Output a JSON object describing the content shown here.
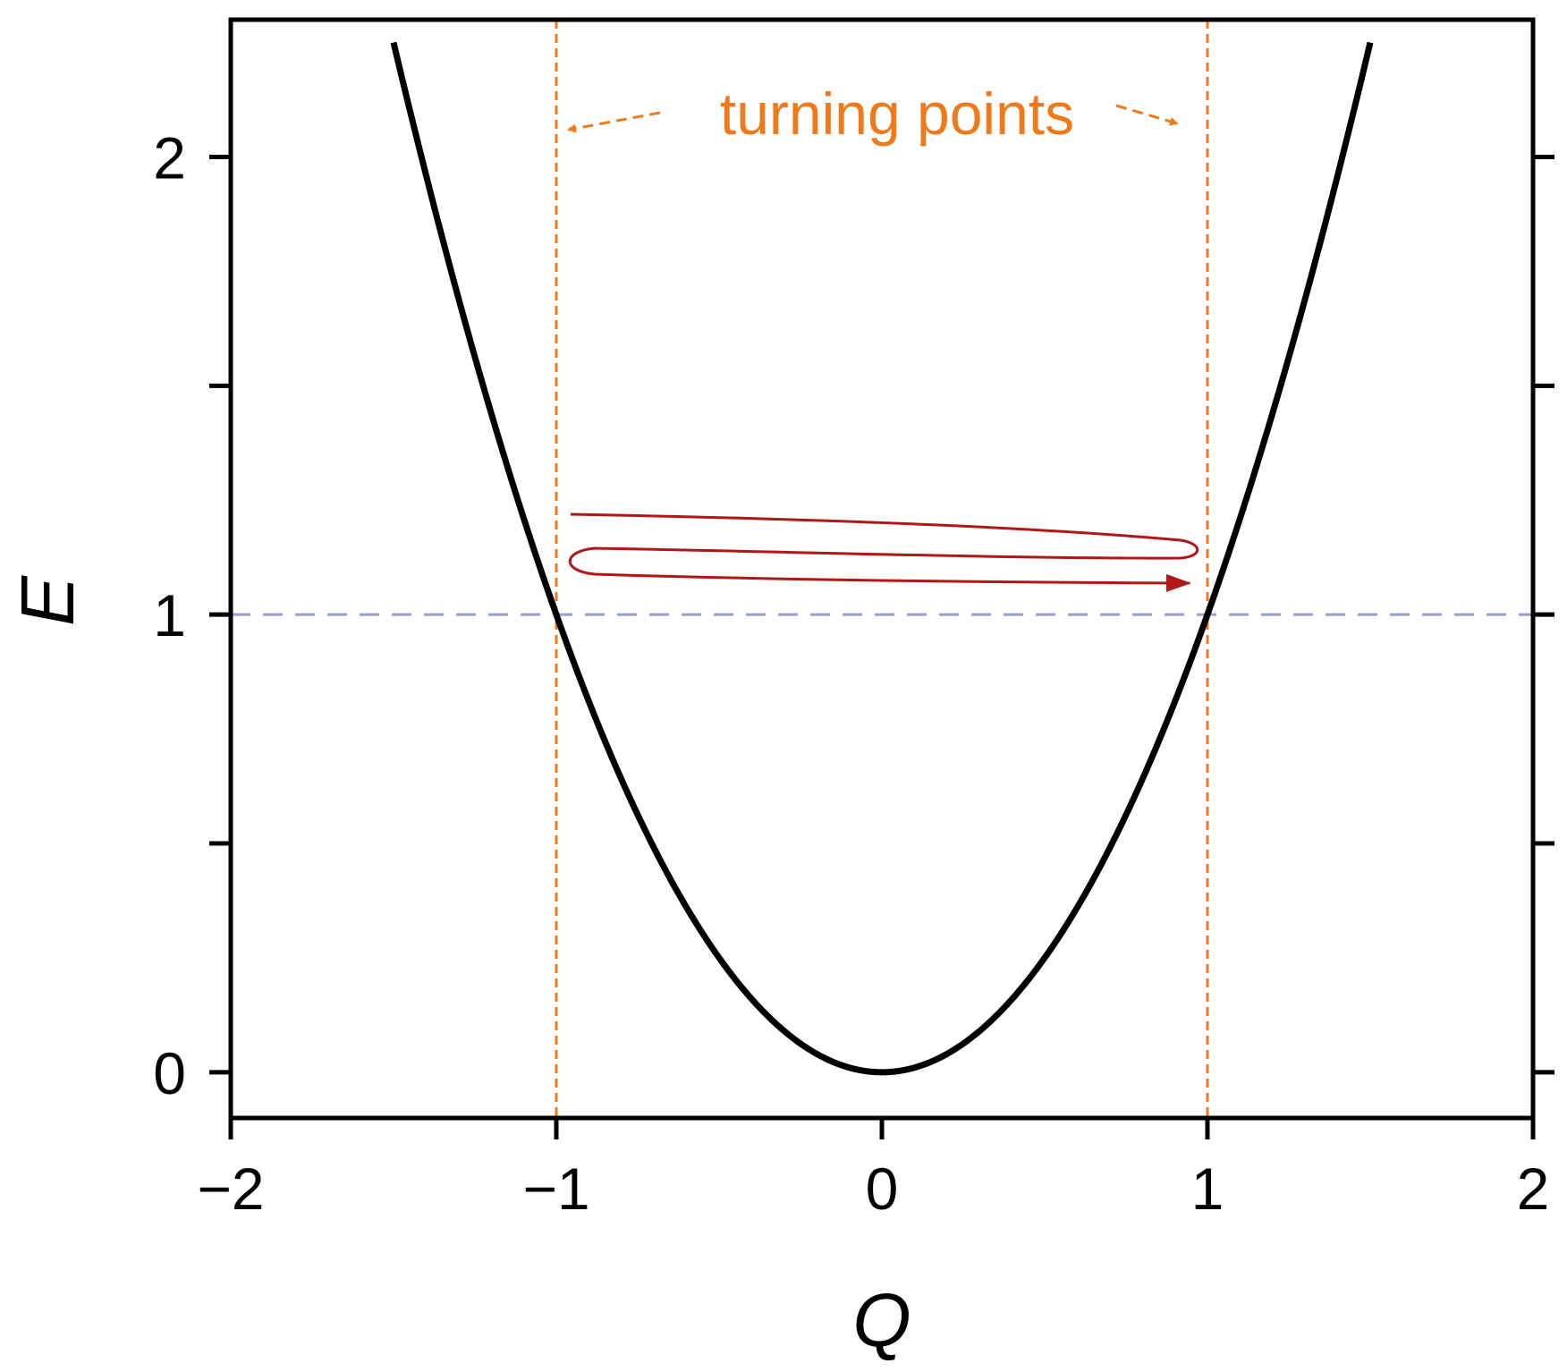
{
  "chart_data": {
    "type": "line",
    "xlabel": "Q",
    "ylabel": "E",
    "xlim": [
      -2,
      2
    ],
    "ylim": [
      -0.1,
      2.3
    ],
    "x_ticks": [
      -2,
      -1,
      0,
      1,
      2
    ],
    "x_tick_labels": [
      "−2",
      "−1",
      "0",
      "1",
      "2"
    ],
    "y_major_ticks": [
      0,
      1,
      2
    ],
    "y_tick_labels": [
      "0",
      "1",
      "2"
    ],
    "y_minor_ticks": [
      0.5,
      1.5
    ],
    "grid": false,
    "series": [
      {
        "x": [
          -1.5,
          -1.4,
          -1.3,
          -1.2,
          -1.1,
          -1.0,
          -0.9,
          -0.8,
          -0.7,
          -0.6,
          -0.5,
          -0.4,
          -0.3,
          -0.2,
          -0.1,
          0.0,
          0.1,
          0.2,
          0.3,
          0.4,
          0.5,
          0.6,
          0.7,
          0.8,
          0.9,
          1.0,
          1.1,
          1.2,
          1.3,
          1.4,
          1.5
        ],
        "y": [
          2.25,
          1.96,
          1.69,
          1.44,
          1.21,
          1.0,
          0.81,
          0.64,
          0.49,
          0.36,
          0.25,
          0.16,
          0.09,
          0.04,
          0.01,
          0.0,
          0.01,
          0.04,
          0.09,
          0.16,
          0.25,
          0.36,
          0.49,
          0.64,
          0.81,
          1.0,
          1.21,
          1.44,
          1.69,
          1.96,
          2.25
        ],
        "color": "#000000"
      }
    ],
    "reference_lines": {
      "energy_level": {
        "y": 1,
        "color": "#9a9ad8"
      },
      "turning_points": {
        "x": [
          -1,
          1
        ],
        "color": "#f07a1a"
      }
    },
    "annotations": [
      {
        "text": "turning points",
        "color": "#f07a1a"
      }
    ],
    "oscillation_path_color": "#b01818"
  }
}
